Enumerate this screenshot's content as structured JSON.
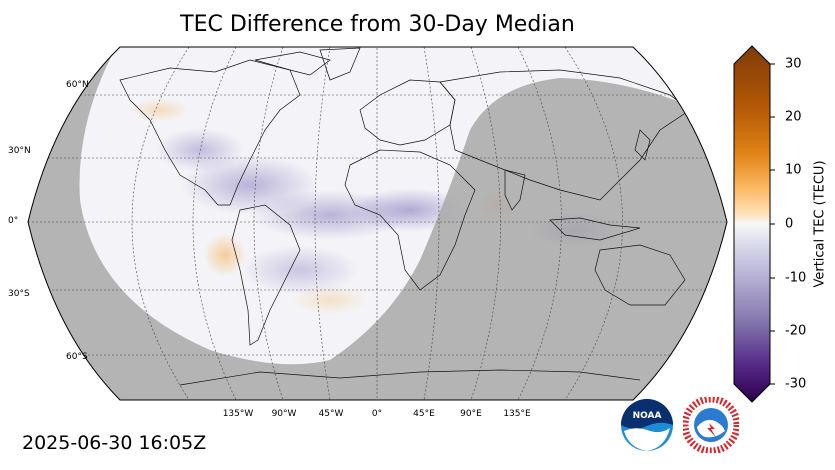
{
  "title": "TEC Difference from 30-Day Median",
  "timestamp": "2025-06-30 16:05Z",
  "lat_labels": [
    "60°N",
    "30°N",
    "0°",
    "30°S",
    "60°S"
  ],
  "lon_labels": [
    "135°W",
    "90°W",
    "45°W",
    "0°",
    "45°E",
    "90°E",
    "135°E"
  ],
  "colorbar": {
    "label": "Vertical TEC (TECU)",
    "ticks": [
      "30",
      "20",
      "10",
      "0",
      "-10",
      "-20",
      "-30"
    ],
    "range": [
      -30,
      30
    ],
    "high_color": "#7f3b08",
    "mid_color": "#f7f7f7",
    "low_color": "#2d004b"
  },
  "logos": {
    "noaa": "NOAA"
  },
  "colors": {
    "night_shade": "#b3b3b3",
    "day": "#f4f4f8",
    "ocean_negative": "#c9c5e0",
    "ocean_positive": "#fbe3c4"
  }
}
